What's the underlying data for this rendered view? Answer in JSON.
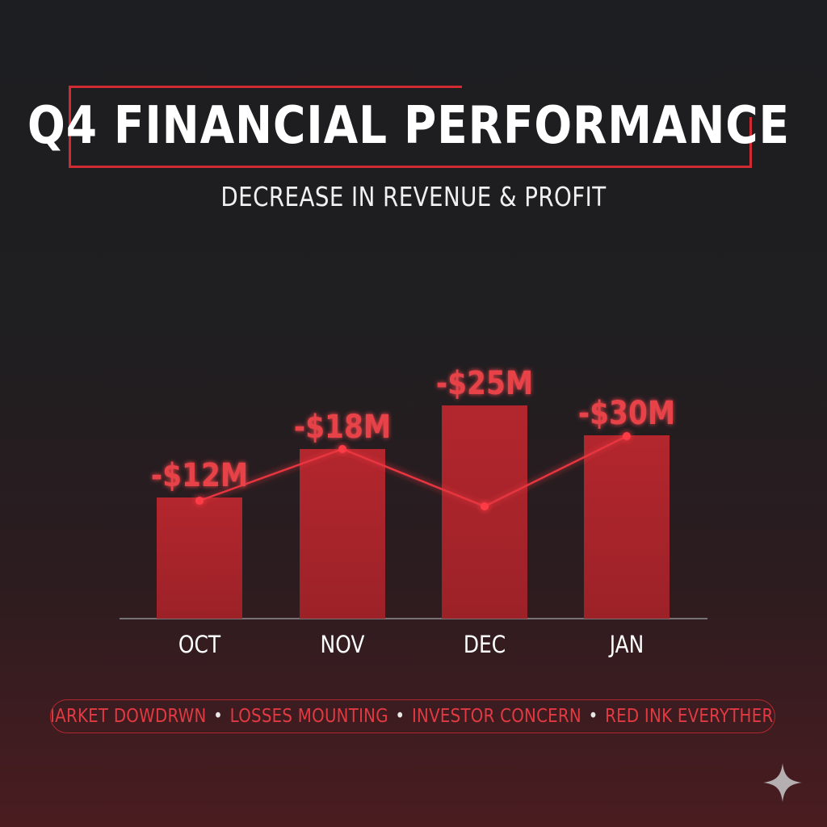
{
  "title": "Q4 FINANCIAL PERFORMANCE",
  "subtitle": "DECREASE IN REVENUE & PROFIT",
  "chart_data": {
    "type": "bar",
    "categories": [
      "OCT",
      "NOV",
      "DEC",
      "JAN"
    ],
    "values": [
      -12,
      -18,
      -25,
      -30
    ],
    "value_labels": [
      "-$12M",
      "-$18M",
      "-$25M",
      "-$30M"
    ],
    "unit": "$M",
    "line_overlay": {
      "type": "line",
      "relative_levels": [
        0.55,
        0.78,
        0.52,
        0.85
      ]
    },
    "grid": false,
    "legend": "none"
  },
  "ticker": {
    "items": [
      "MARKET DOWDRWN",
      "LOSSES MOUNTING",
      "INVESTOR CONCERN",
      "RED INK EVERYTHERE"
    ],
    "separator": "•"
  },
  "colors": {
    "accent": "#d02a32",
    "bar_fill": "#a8252b",
    "label_red": "#e8424a",
    "text_white": "#ffffff"
  },
  "icons": {
    "corner": "sparkle-icon"
  }
}
